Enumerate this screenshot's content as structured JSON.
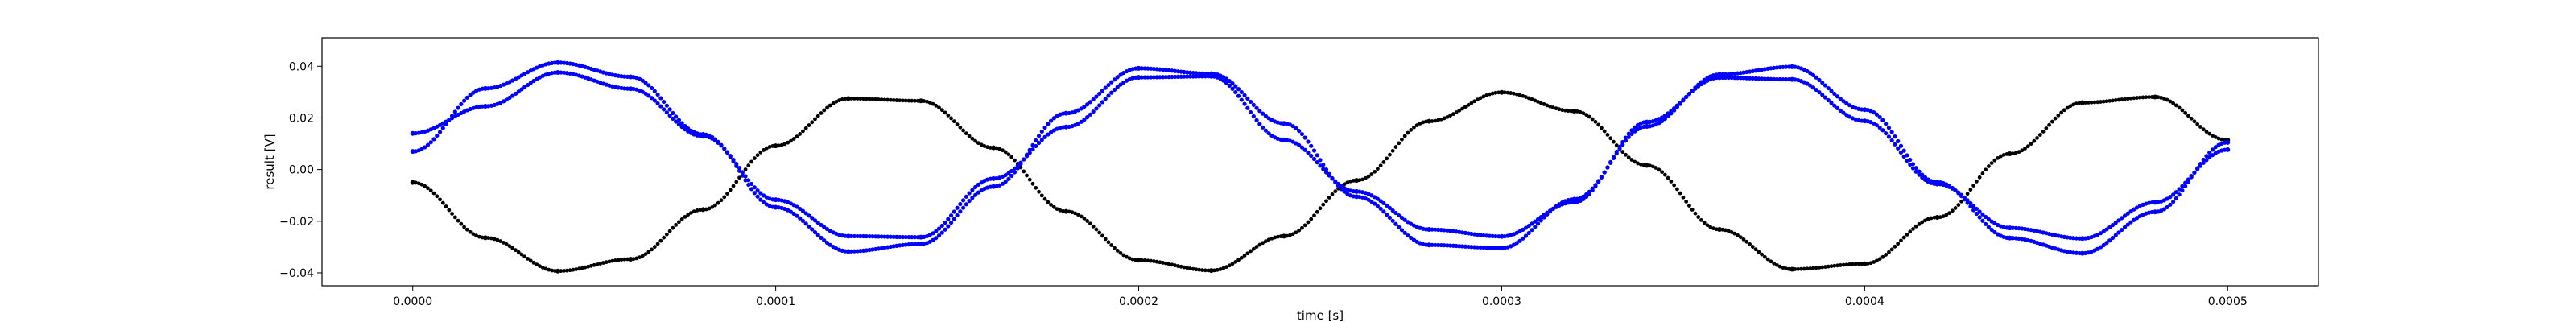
{
  "chart_data": {
    "type": "scatter",
    "title": "",
    "xlabel": "time [s]",
    "ylabel": "result [V]",
    "xlim": [
      -2.5e-05,
      0.000525
    ],
    "ylim": [
      -0.045,
      0.051
    ],
    "grid": false,
    "legend": null,
    "x_ticks": [
      {
        "value": 0.0,
        "label": "0.0000"
      },
      {
        "value": 0.0001,
        "label": "0.0001"
      },
      {
        "value": 0.0002,
        "label": "0.0002"
      },
      {
        "value": 0.0003,
        "label": "0.0003"
      },
      {
        "value": 0.0004,
        "label": "0.0004"
      },
      {
        "value": 0.0005,
        "label": "0.0005"
      }
    ],
    "y_ticks": [
      {
        "value": 0.04,
        "label": "0.04"
      },
      {
        "value": 0.02,
        "label": "0.02"
      },
      {
        "value": 0.0,
        "label": "0.00"
      },
      {
        "value": -0.02,
        "label": "−0.02"
      },
      {
        "value": -0.04,
        "label": "−0.04"
      }
    ],
    "series": [
      {
        "color": "#000000",
        "x": [
          0.0,
          2e-05,
          4e-05,
          6e-05,
          8e-05,
          0.0001,
          0.00012,
          0.00014,
          0.00016,
          0.00018,
          0.0002,
          0.00022,
          0.00024,
          0.00026,
          0.00028,
          0.0003,
          0.00032,
          0.00034,
          0.00036,
          0.00038,
          0.0004,
          0.00042,
          0.00044,
          0.00046,
          0.00048,
          0.0005
        ],
        "y": [
          -0.005,
          -0.0264,
          -0.0393,
          -0.0347,
          -0.0155,
          0.0092,
          0.0275,
          0.0266,
          0.0084,
          -0.0162,
          -0.0351,
          -0.0391,
          -0.0258,
          -0.0042,
          0.0187,
          0.0299,
          0.0226,
          0.0016,
          -0.0232,
          -0.0386,
          -0.0365,
          -0.0185,
          0.0061,
          0.0259,
          0.0281,
          0.0114
        ]
      },
      {
        "color": "#0000ff",
        "x": [
          0.0,
          2e-05,
          4e-05,
          6e-05,
          8e-05,
          0.0001,
          0.00012,
          0.00014,
          0.00016,
          0.00018,
          0.0002,
          0.00022,
          0.00024,
          0.00026,
          0.00028,
          0.0003,
          0.00032,
          0.00034,
          0.00036,
          0.00038,
          0.0004,
          0.00042,
          0.00044,
          0.00046,
          0.00048,
          0.0005
        ],
        "y": [
          0.007,
          0.0314,
          0.0414,
          0.0359,
          0.0136,
          -0.0146,
          -0.0317,
          -0.0288,
          -0.0066,
          0.0218,
          0.0392,
          0.0371,
          0.0179,
          -0.0105,
          -0.0292,
          -0.0304,
          -0.0115,
          0.0167,
          0.0368,
          0.0398,
          0.0232,
          -0.0049,
          -0.0265,
          -0.0324,
          -0.0164,
          0.0105
        ]
      },
      {
        "color": "#0000ff",
        "x": [
          0.0,
          2e-05,
          4e-05,
          6e-05,
          8e-05,
          0.0001,
          0.00012,
          0.00014,
          0.00016,
          0.00018,
          0.0002,
          0.00022,
          0.00024,
          0.00026,
          0.00028,
          0.0003,
          0.00032,
          0.00034,
          0.00036,
          0.00038,
          0.0004,
          0.00042,
          0.00044,
          0.00046,
          0.00048,
          0.0005
        ],
        "y": [
          0.014,
          0.0245,
          0.0376,
          0.0313,
          0.0129,
          -0.0117,
          -0.0258,
          -0.0262,
          -0.0035,
          0.0165,
          0.0357,
          0.0361,
          0.0115,
          -0.0085,
          -0.0232,
          -0.0259,
          -0.0126,
          0.0184,
          0.0356,
          0.0349,
          0.0188,
          -0.0056,
          -0.0226,
          -0.0267,
          -0.0127,
          0.0077
        ]
      }
    ]
  }
}
